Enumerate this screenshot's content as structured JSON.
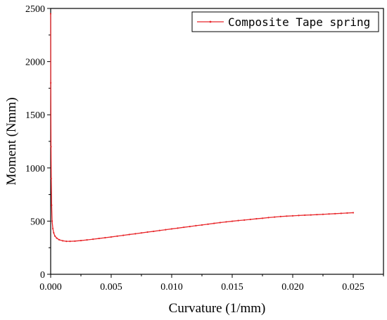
{
  "chart_data": {
    "type": "line",
    "title": "",
    "xlabel": "Curvature (1/mm)",
    "ylabel": "Moment (Nmm)",
    "xlim": [
      0,
      0.0275
    ],
    "ylim": [
      0,
      2500
    ],
    "x_ticks": [
      0,
      0.005,
      0.01,
      0.015,
      0.02,
      0.025
    ],
    "x_tick_labels": [
      "0.000",
      "0.005",
      "0.010",
      "0.015",
      "0.020",
      "0.025"
    ],
    "y_ticks": [
      0,
      500,
      1000,
      1500,
      2000,
      2500
    ],
    "y_tick_labels": [
      "0",
      "500",
      "1000",
      "1500",
      "2000",
      "2500"
    ],
    "grid": false,
    "legend_position": "top-right",
    "series": [
      {
        "name": "Composite Tape spring",
        "color": "#e8262a",
        "x": [
          0,
          1e-05,
          3e-05,
          5e-05,
          8e-05,
          0.00012,
          0.00018,
          0.00025,
          0.00035,
          0.0005,
          0.0007,
          0.001,
          0.0013,
          0.0016,
          0.002,
          0.0025,
          0.003,
          0.0035,
          0.004,
          0.0045,
          0.005,
          0.0055,
          0.006,
          0.0065,
          0.007,
          0.0075,
          0.008,
          0.0085,
          0.009,
          0.0095,
          0.01,
          0.0105,
          0.011,
          0.0115,
          0.012,
          0.0125,
          0.013,
          0.0135,
          0.014,
          0.0145,
          0.015,
          0.0155,
          0.016,
          0.0165,
          0.017,
          0.0175,
          0.018,
          0.0185,
          0.019,
          0.0195,
          0.02,
          0.0205,
          0.021,
          0.0215,
          0.022,
          0.0225,
          0.023,
          0.0235,
          0.024,
          0.0245,
          0.025
        ],
        "y": [
          2450,
          1800,
          1200,
          900,
          650,
          500,
          430,
          390,
          360,
          340,
          325,
          315,
          310,
          310,
          312,
          317,
          323,
          330,
          337,
          344,
          351,
          359,
          366,
          374,
          381,
          389,
          397,
          404,
          412,
          419,
          427,
          434,
          442,
          449,
          457,
          464,
          471,
          479,
          486,
          493,
          499,
          505,
          510,
          516,
          522,
          527,
          533,
          538,
          543,
          547,
          550,
          553,
          556,
          558,
          561,
          564,
          567,
          570,
          573,
          576,
          579
        ]
      }
    ]
  }
}
